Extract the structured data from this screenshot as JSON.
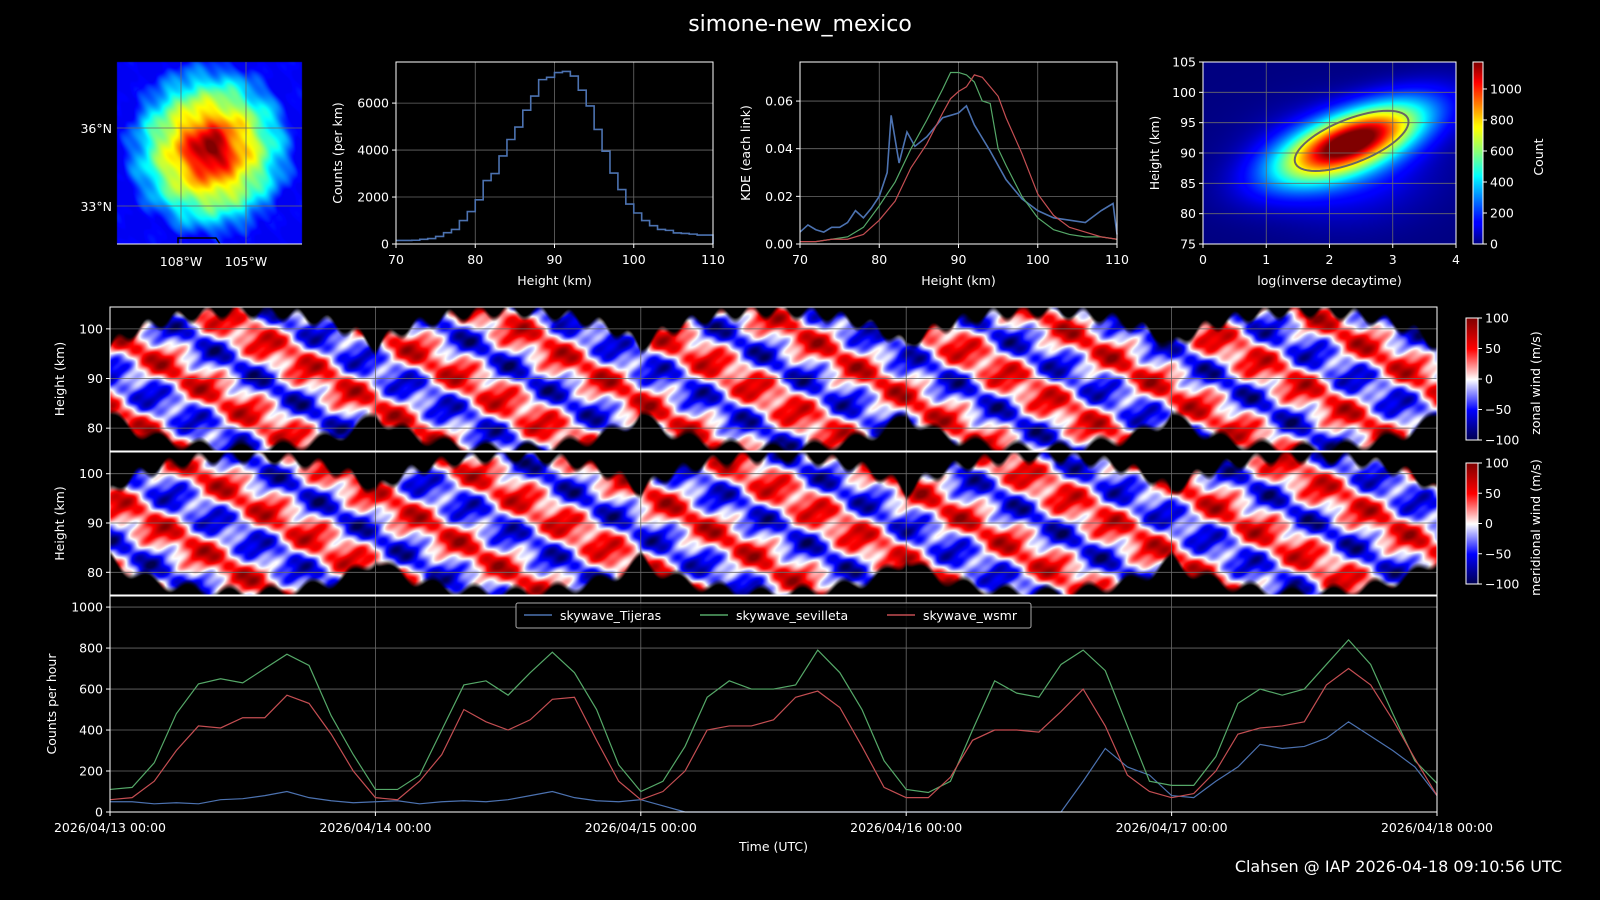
{
  "title": "simone-new_mexico",
  "footer": "Clahsen @ IAP 2026-04-18 09:10:56 UTC",
  "colors": {
    "background": "#000000",
    "tijeras": "#4c72b0",
    "sevilleta": "#55a868",
    "wsmr": "#c44e52",
    "histogram": "#4c72b0",
    "grid": "#5a5a5a"
  },
  "chart_data": [
    {
      "type": "heatmap",
      "colormap": "jet",
      "xtick_labels": [
        "108°W",
        "105°W"
      ],
      "ytick_labels": [
        "36°N",
        "33°N"
      ],
      "grid": true
    },
    {
      "type": "bar",
      "style": "step",
      "xlabel": "Height (km)",
      "ylabel": "Counts (per km)",
      "xlim": [
        70,
        110
      ],
      "ylim": [
        0,
        7750
      ],
      "xticks": [
        "70",
        "80",
        "90",
        "100",
        "110"
      ],
      "yticks": [
        "0",
        "2000",
        "4000",
        "6000"
      ],
      "bin_width_km": 1,
      "categories": [
        70,
        71,
        72,
        73,
        74,
        75,
        76,
        77,
        78,
        79,
        80,
        81,
        82,
        83,
        84,
        85,
        86,
        87,
        88,
        89,
        90,
        91,
        92,
        93,
        94,
        95,
        96,
        97,
        98,
        99,
        100,
        101,
        102,
        103,
        104,
        105,
        106,
        107,
        108,
        109
      ],
      "values": [
        150,
        150,
        160,
        200,
        230,
        320,
        480,
        620,
        1000,
        1380,
        1880,
        2700,
        3000,
        3750,
        4450,
        4980,
        5700,
        6300,
        7000,
        7100,
        7300,
        7350,
        7150,
        6550,
        5880,
        4880,
        3950,
        3020,
        2320,
        1700,
        1320,
        1000,
        780,
        620,
        580,
        470,
        450,
        420,
        380,
        380
      ],
      "grid": true
    },
    {
      "type": "line",
      "xlabel": "Height (km)",
      "ylabel": "KDE (each link)",
      "xlim": [
        70,
        110
      ],
      "ylim": [
        0,
        0.0764
      ],
      "xticks": [
        "70",
        "80",
        "90",
        "100",
        "110"
      ],
      "yticks": [
        "0.00",
        "0.02",
        "0.04",
        "0.06"
      ],
      "grid": true,
      "series": [
        {
          "color": "#4c72b0",
          "x": [
            70,
            71,
            72,
            73,
            74,
            75,
            76,
            77,
            78,
            79,
            80,
            81,
            81.5,
            82.5,
            83.5,
            84.5,
            86,
            88,
            90,
            91,
            92,
            94,
            96,
            98,
            100,
            102,
            104,
            106,
            108,
            109.5,
            110
          ],
          "y": [
            0.005,
            0.008,
            0.006,
            0.005,
            0.007,
            0.007,
            0.009,
            0.014,
            0.011,
            0.015,
            0.02,
            0.03,
            0.054,
            0.034,
            0.047,
            0.041,
            0.045,
            0.053,
            0.055,
            0.058,
            0.05,
            0.039,
            0.027,
            0.019,
            0.014,
            0.011,
            0.01,
            0.009,
            0.014,
            0.017,
            0.004
          ]
        },
        {
          "color": "#55a868",
          "x": [
            70,
            72,
            74,
            76,
            78,
            80,
            82,
            84,
            86,
            88,
            89,
            90,
            91,
            92,
            93,
            94,
            95,
            96,
            98,
            100,
            102,
            104,
            106,
            108,
            110
          ],
          "y": [
            0.001,
            0.001,
            0.002,
            0.003,
            0.007,
            0.016,
            0.026,
            0.04,
            0.052,
            0.065,
            0.072,
            0.072,
            0.071,
            0.068,
            0.06,
            0.059,
            0.04,
            0.033,
            0.02,
            0.011,
            0.006,
            0.004,
            0.003,
            0.003,
            0.002
          ]
        },
        {
          "color": "#c44e52",
          "x": [
            70,
            72,
            74,
            76,
            78,
            80,
            82,
            84,
            86,
            88,
            89,
            90,
            91,
            92,
            93,
            94,
            95,
            96,
            98,
            100,
            102,
            104,
            106,
            108,
            110
          ],
          "y": [
            0.001,
            0.001,
            0.002,
            0.002,
            0.004,
            0.01,
            0.018,
            0.032,
            0.042,
            0.055,
            0.061,
            0.064,
            0.066,
            0.071,
            0.07,
            0.066,
            0.062,
            0.053,
            0.038,
            0.021,
            0.012,
            0.007,
            0.005,
            0.003,
            0.002
          ]
        }
      ]
    },
    {
      "type": "heatmap",
      "colormap": "jet",
      "xlabel": "log(inverse decaytime)",
      "ylabel": "Height (km)",
      "xlim": [
        0,
        4
      ],
      "ylim": [
        75,
        105
      ],
      "xticks": [
        "0",
        "1",
        "2",
        "3",
        "4"
      ],
      "yticks": [
        "75",
        "80",
        "85",
        "90",
        "95",
        "100",
        "105"
      ],
      "colorbar_label": "Count",
      "colorbar_ticks": [
        "0",
        "200",
        "400",
        "600",
        "800",
        "1000"
      ],
      "clim": [
        0,
        1174
      ],
      "peak": {
        "x": 2.35,
        "y": 92,
        "count": 1170
      },
      "grid": true
    },
    {
      "type": "heatmap",
      "colormap": "seismic",
      "ylabel": "Height (km)",
      "ylim": [
        75.4,
        104.4
      ],
      "yticks": [
        "80",
        "90",
        "100"
      ],
      "colorbar_label": "zonal wind (m/s)",
      "colorbar_ticks": [
        "−100",
        "−50",
        "0",
        "50",
        "100"
      ],
      "clim": [
        -100,
        100
      ],
      "grid": true
    },
    {
      "type": "heatmap",
      "colormap": "seismic",
      "ylabel": "Height (km)",
      "ylim": [
        75.4,
        104.4
      ],
      "yticks": [
        "80",
        "90",
        "100"
      ],
      "colorbar_label": "meridional wind (m/s)",
      "colorbar_ticks": [
        "−100",
        "−50",
        "0",
        "50",
        "100"
      ],
      "clim": [
        -100,
        100
      ],
      "grid": true
    },
    {
      "type": "line",
      "xlabel": "Time (UTC)",
      "ylabel": "Counts per hour",
      "xlim": [
        "2026-04-13 00:00",
        "2026-04-18 00:00"
      ],
      "ylim": [
        0,
        1054
      ],
      "xticks": [
        "2026/04/13 00:00",
        "2026/04/14 00:00",
        "2026/04/15 00:00",
        "2026/04/16 00:00",
        "2026/04/17 00:00",
        "2026/04/18 00:00"
      ],
      "yticks": [
        "0",
        "200",
        "400",
        "600",
        "800",
        "1000"
      ],
      "legend": "top-center",
      "grid": true,
      "x": [
        "2026-04-13 00:00",
        "2026-04-13 02:00",
        "2026-04-13 04:00",
        "2026-04-13 06:00",
        "2026-04-13 08:00",
        "2026-04-13 10:00",
        "2026-04-13 12:00",
        "2026-04-13 14:00",
        "2026-04-13 16:00",
        "2026-04-13 18:00",
        "2026-04-13 20:00",
        "2026-04-13 22:00",
        "2026-04-14 00:00",
        "2026-04-14 02:00",
        "2026-04-14 04:00",
        "2026-04-14 06:00",
        "2026-04-14 08:00",
        "2026-04-14 10:00",
        "2026-04-14 12:00",
        "2026-04-14 14:00",
        "2026-04-14 16:00",
        "2026-04-14 18:00",
        "2026-04-14 20:00",
        "2026-04-14 22:00",
        "2026-04-15 00:00",
        "2026-04-15 02:00",
        "2026-04-15 04:00",
        "2026-04-15 06:00",
        "2026-04-15 08:00",
        "2026-04-15 10:00",
        "2026-04-15 12:00",
        "2026-04-15 14:00",
        "2026-04-15 16:00",
        "2026-04-15 18:00",
        "2026-04-15 20:00",
        "2026-04-15 22:00",
        "2026-04-16 00:00",
        "2026-04-16 02:00",
        "2026-04-16 04:00",
        "2026-04-16 06:00",
        "2026-04-16 08:00",
        "2026-04-16 10:00",
        "2026-04-16 12:00",
        "2026-04-16 14:00",
        "2026-04-16 16:00",
        "2026-04-16 18:00",
        "2026-04-16 20:00",
        "2026-04-16 22:00",
        "2026-04-17 00:00",
        "2026-04-17 02:00",
        "2026-04-17 04:00",
        "2026-04-17 06:00",
        "2026-04-17 08:00",
        "2026-04-17 10:00",
        "2026-04-17 12:00",
        "2026-04-17 14:00",
        "2026-04-17 16:00",
        "2026-04-17 18:00",
        "2026-04-17 20:00",
        "2026-04-17 22:00",
        "2026-04-18 00:00"
      ],
      "series": [
        {
          "name": "skywave_Tijeras",
          "color": "#4c72b0",
          "values": [
            50,
            50,
            40,
            45,
            40,
            60,
            65,
            80,
            100,
            70,
            55,
            45,
            50,
            55,
            40,
            50,
            55,
            50,
            60,
            80,
            100,
            70,
            55,
            50,
            60,
            30,
            0,
            0,
            0,
            0,
            0,
            0,
            0,
            0,
            0,
            0,
            0,
            0,
            0,
            0,
            0,
            0,
            0,
            0,
            150,
            310,
            220,
            180,
            80,
            70,
            150,
            220,
            330,
            310,
            320,
            360,
            440,
            370,
            300,
            220,
            80
          ]
        },
        {
          "name": "skywave_sevilleta",
          "color": "#55a868",
          "values": [
            110,
            120,
            240,
            480,
            625,
            650,
            630,
            700,
            770,
            715,
            470,
            280,
            110,
            110,
            180,
            400,
            620,
            640,
            570,
            680,
            780,
            680,
            500,
            230,
            100,
            150,
            320,
            560,
            640,
            600,
            600,
            620,
            790,
            680,
            500,
            250,
            110,
            95,
            150,
            400,
            640,
            580,
            560,
            720,
            790,
            690,
            420,
            150,
            130,
            130,
            270,
            530,
            600,
            570,
            600,
            720,
            840,
            720,
            480,
            250,
            140
          ]
        },
        {
          "name": "skywave_wsmr",
          "color": "#c44e52",
          "values": [
            60,
            70,
            150,
            300,
            420,
            410,
            460,
            460,
            570,
            530,
            380,
            200,
            70,
            60,
            150,
            280,
            500,
            440,
            400,
            450,
            550,
            560,
            350,
            150,
            60,
            100,
            200,
            400,
            420,
            420,
            450,
            560,
            590,
            510,
            320,
            120,
            70,
            70,
            170,
            350,
            400,
            400,
            390,
            490,
            600,
            420,
            180,
            100,
            70,
            90,
            200,
            380,
            410,
            420,
            440,
            620,
            700,
            620,
            450,
            260,
            80
          ]
        }
      ]
    }
  ]
}
